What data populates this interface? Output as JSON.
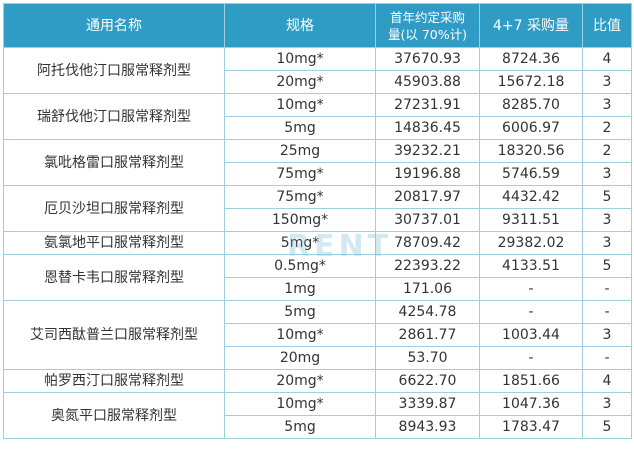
{
  "headers": {
    "name": "通用名称",
    "spec": "规格",
    "volume_line1": "首年约定采购",
    "volume_line2": "量(以 70%计)",
    "volume_47": "4+7 采购量",
    "ratio": "比值"
  },
  "drugs": [
    {
      "name": "阿托伐他汀口服常释剂型",
      "rows": [
        {
          "spec": "10mg*",
          "annual": "37670.93",
          "v47": "8724.36",
          "ratio": "4"
        },
        {
          "spec": "20mg*",
          "annual": "45903.88",
          "v47": "15672.18",
          "ratio": "3"
        }
      ]
    },
    {
      "name": "瑞舒伐他汀口服常释剂型",
      "rows": [
        {
          "spec": "10mg*",
          "annual": "27231.91",
          "v47": "8285.70",
          "ratio": "3"
        },
        {
          "spec": "5mg",
          "annual": "14836.45",
          "v47": "6006.97",
          "ratio": "2"
        }
      ]
    },
    {
      "name": "氯吡格雷口服常释剂型",
      "rows": [
        {
          "spec": "25mg",
          "annual": "39232.21",
          "v47": "18320.56",
          "ratio": "2"
        },
        {
          "spec": "75mg*",
          "annual": "19196.88",
          "v47": "5746.59",
          "ratio": "3"
        }
      ]
    },
    {
      "name": "厄贝沙坦口服常释剂型",
      "rows": [
        {
          "spec": "75mg*",
          "annual": "20817.97",
          "v47": "4432.42",
          "ratio": "5"
        },
        {
          "spec": "150mg*",
          "annual": "30737.01",
          "v47": "9311.51",
          "ratio": "3"
        }
      ]
    },
    {
      "name": "氨氯地平口服常释剂型",
      "rows": [
        {
          "spec": "5mg*",
          "annual": "78709.42",
          "v47": "29382.02",
          "ratio": "3"
        }
      ]
    },
    {
      "name": "恩替卡韦口服常释剂型",
      "rows": [
        {
          "spec": "0.5mg*",
          "annual": "22393.22",
          "v47": "4133.51",
          "ratio": "5"
        },
        {
          "spec": "1mg",
          "annual": "171.06",
          "v47": "-",
          "ratio": "-"
        }
      ]
    },
    {
      "name": "艾司西酞普兰口服常释剂型",
      "rows": [
        {
          "spec": "5mg",
          "annual": "4254.78",
          "v47": "-",
          "ratio": "-"
        },
        {
          "spec": "10mg*",
          "annual": "2861.77",
          "v47": "1003.44",
          "ratio": "3"
        },
        {
          "spec": "20mg",
          "annual": "53.70",
          "v47": "-",
          "ratio": "-"
        }
      ]
    },
    {
      "name": "帕罗西汀口服常释剂型",
      "rows": [
        {
          "spec": "20mg*",
          "annual": "6622.70",
          "v47": "1851.66",
          "ratio": "4"
        }
      ]
    },
    {
      "name": "奥氮平口服常释剂型",
      "rows": [
        {
          "spec": "10mg*",
          "annual": "3339.87",
          "v47": "1047.36",
          "ratio": "3"
        },
        {
          "spec": "5mg",
          "annual": "8943.93",
          "v47": "1783.47",
          "ratio": "5"
        }
      ]
    }
  ],
  "watermark": "RENT"
}
